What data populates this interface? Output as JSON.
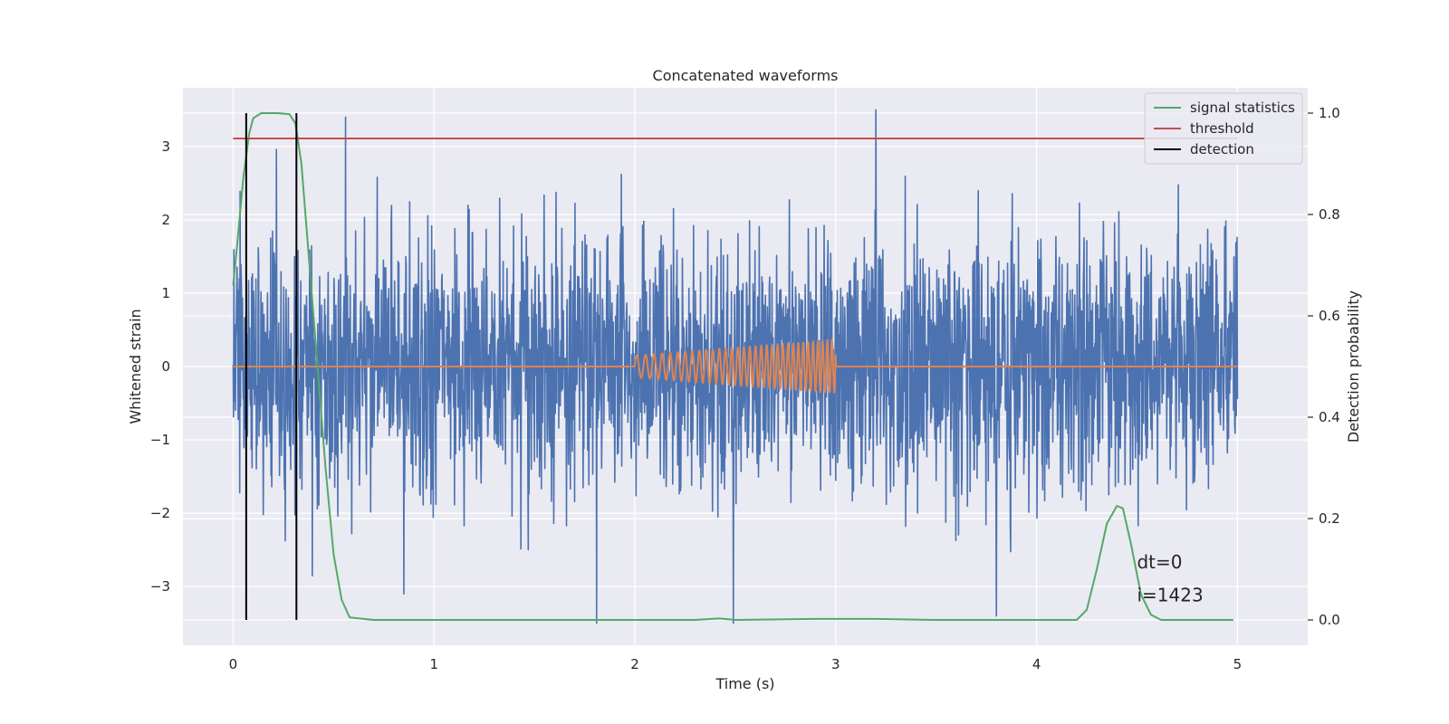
{
  "chart_data": {
    "type": "line",
    "title": "Concatenated waveforms",
    "xlabel": "Time (s)",
    "ylabel": "Whitened strain",
    "y2label": "Detection probability",
    "xlim": [
      -0.25,
      5.35
    ],
    "ylim": [
      -3.8,
      3.8
    ],
    "y2lim": [
      -0.05,
      1.05
    ],
    "x_ticks": [
      0,
      1,
      2,
      3,
      4,
      5
    ],
    "y_ticks": [
      -3,
      -2,
      -1,
      0,
      1,
      2,
      3
    ],
    "y2_ticks": [
      0.0,
      0.2,
      0.4,
      0.6,
      0.8,
      1.0
    ],
    "x_tick_labels": [
      "0",
      "1",
      "2",
      "3",
      "4",
      "5"
    ],
    "y_tick_labels": [
      "−3",
      "−2",
      "−1",
      "0",
      "1",
      "2",
      "3"
    ],
    "y2_tick_labels": [
      "0.0",
      "0.2",
      "0.4",
      "0.6",
      "0.8",
      "1.0"
    ],
    "grid": true,
    "legend_position": "top-right",
    "series": [
      {
        "name": "whitened strain",
        "axis": "left",
        "color": "#4c72b0",
        "x_range": [
          0,
          5
        ],
        "typical_amplitude": 1.6,
        "spikes": [
          {
            "x": 0.56,
            "y": 3.4
          },
          {
            "x": 3.2,
            "y": 3.5
          },
          {
            "x": 1.81,
            "y": -3.5
          },
          {
            "x": 2.49,
            "y": -3.5
          },
          {
            "x": 3.8,
            "y": -3.4
          },
          {
            "x": 0.85,
            "y": -3.1
          }
        ]
      },
      {
        "name": "injected waveform",
        "axis": "left",
        "color": "#dd8452",
        "x_range": [
          0,
          5
        ],
        "chirp_start": 2.0,
        "chirp_end": 3.0,
        "amplitude_start": 0.15,
        "amplitude_end": 0.37,
        "freq_start": 22,
        "freq_end": 44
      },
      {
        "name": "signal statistics",
        "axis": "right",
        "color": "#55a868",
        "points": [
          [
            0.0,
            0.66
          ],
          [
            0.02,
            0.74
          ],
          [
            0.05,
            0.87
          ],
          [
            0.08,
            0.96
          ],
          [
            0.1,
            0.99
          ],
          [
            0.14,
            1.0
          ],
          [
            0.22,
            1.0
          ],
          [
            0.28,
            0.998
          ],
          [
            0.31,
            0.98
          ],
          [
            0.34,
            0.9
          ],
          [
            0.38,
            0.7
          ],
          [
            0.42,
            0.5
          ],
          [
            0.46,
            0.3
          ],
          [
            0.5,
            0.13
          ],
          [
            0.54,
            0.04
          ],
          [
            0.58,
            0.005
          ],
          [
            0.7,
            0.0
          ],
          [
            1.5,
            0.0
          ],
          [
            2.3,
            0.0
          ],
          [
            2.42,
            0.003
          ],
          [
            2.5,
            0.0
          ],
          [
            2.9,
            0.002
          ],
          [
            3.2,
            0.002
          ],
          [
            3.5,
            0.0
          ],
          [
            4.2,
            0.0
          ],
          [
            4.25,
            0.02
          ],
          [
            4.3,
            0.1
          ],
          [
            4.35,
            0.19
          ],
          [
            4.4,
            0.225
          ],
          [
            4.43,
            0.22
          ],
          [
            4.47,
            0.15
          ],
          [
            4.52,
            0.05
          ],
          [
            4.57,
            0.01
          ],
          [
            4.62,
            0.0
          ],
          [
            4.98,
            0.0
          ]
        ]
      },
      {
        "name": "threshold",
        "axis": "right",
        "color": "#c44e52",
        "value": 0.95,
        "x_range": [
          0,
          5
        ]
      },
      {
        "name": "detection",
        "axis": "right",
        "color": "#000000",
        "times": [
          0.065,
          0.315
        ],
        "y_range": [
          0.0,
          1.0
        ]
      }
    ],
    "legend": [
      {
        "label": "signal statistics",
        "color": "#55a868"
      },
      {
        "label": "threshold",
        "color": "#c44e52"
      },
      {
        "label": "detection",
        "color": "#000000"
      }
    ],
    "annotations": [
      {
        "text": "dt=0",
        "x": 4.5,
        "y": -2.75
      },
      {
        "text": "i=1423",
        "x": 4.5,
        "y": -3.2
      }
    ]
  }
}
